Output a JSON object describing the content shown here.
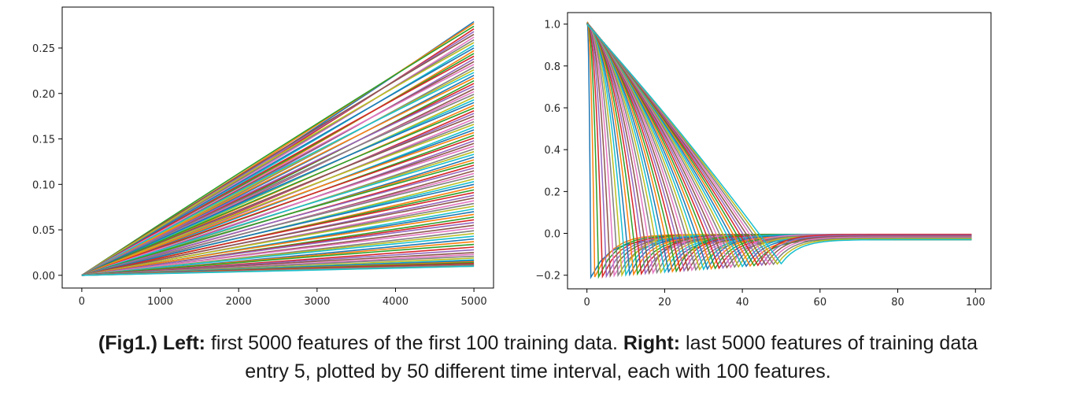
{
  "chart_data": [
    {
      "type": "line",
      "title": "",
      "xlabel": "",
      "ylabel": "",
      "xlim": [
        -250,
        5250
      ],
      "ylim": [
        -0.014,
        0.295
      ],
      "x_ticks": [
        0,
        1000,
        2000,
        3000,
        4000,
        5000
      ],
      "x_tick_labels": [
        "0",
        "1000",
        "2000",
        "3000",
        "4000",
        "5000"
      ],
      "y_ticks": [
        0.0,
        0.05,
        0.1,
        0.15,
        0.2,
        0.25
      ],
      "y_tick_labels": [
        "0.00",
        "0.05",
        "0.10",
        "0.15",
        "0.20",
        "0.25"
      ],
      "grid": false,
      "legend": "none",
      "series_count": 100,
      "x_range": [
        0,
        5000
      ],
      "y_start": 0.0,
      "y_end_values": [
        0.279,
        0.277,
        0.274,
        0.271,
        0.268,
        0.265,
        0.262,
        0.259,
        0.256,
        0.253,
        0.25,
        0.247,
        0.244,
        0.241,
        0.238,
        0.235,
        0.232,
        0.229,
        0.226,
        0.223,
        0.22,
        0.217,
        0.214,
        0.211,
        0.208,
        0.205,
        0.202,
        0.199,
        0.196,
        0.193,
        0.19,
        0.187,
        0.184,
        0.181,
        0.178,
        0.175,
        0.172,
        0.169,
        0.166,
        0.163,
        0.16,
        0.157,
        0.154,
        0.151,
        0.148,
        0.145,
        0.142,
        0.139,
        0.136,
        0.133,
        0.13,
        0.127,
        0.124,
        0.121,
        0.118,
        0.115,
        0.112,
        0.109,
        0.106,
        0.103,
        0.1,
        0.097,
        0.094,
        0.091,
        0.088,
        0.085,
        0.082,
        0.079,
        0.076,
        0.073,
        0.07,
        0.067,
        0.064,
        0.061,
        0.058,
        0.055,
        0.052,
        0.049,
        0.046,
        0.043,
        0.04,
        0.037,
        0.034,
        0.031,
        0.028,
        0.025,
        0.023,
        0.021,
        0.019,
        0.017,
        0.016,
        0.015,
        0.014,
        0.013,
        0.012,
        0.012,
        0.011,
        0.011,
        0.01,
        0.01
      ],
      "colors": [
        "#1f77b4",
        "#ff7f0e",
        "#2ca02c",
        "#d62728",
        "#9467bd",
        "#8c564b",
        "#e377c2",
        "#7f7f7f",
        "#bcbd22",
        "#17becf"
      ]
    },
    {
      "type": "line",
      "title": "",
      "xlabel": "",
      "ylabel": "",
      "xlim": [
        -5,
        104
      ],
      "ylim": [
        -0.265,
        1.055
      ],
      "x_ticks": [
        0,
        20,
        40,
        60,
        80,
        100
      ],
      "x_tick_labels": [
        "0",
        "20",
        "40",
        "60",
        "80",
        "100"
      ],
      "y_ticks": [
        -0.2,
        0.0,
        0.2,
        0.4,
        0.6,
        0.8,
        1.0
      ],
      "y_tick_labels": [
        "−0.2",
        "0.0",
        "0.2",
        "0.4",
        "0.6",
        "0.8",
        "1.0"
      ],
      "grid": false,
      "legend": "none",
      "series_count": 50,
      "x_range": [
        0,
        99
      ],
      "peak_y": 1.0,
      "min_y_first": -0.21,
      "min_y_last": -0.145,
      "tail_y": -0.03,
      "colors": [
        "#1f77b4",
        "#ff7f0e",
        "#2ca02c",
        "#d62728",
        "#9467bd",
        "#8c564b",
        "#e377c2",
        "#7f7f7f",
        "#bcbd22",
        "#17becf"
      ]
    }
  ],
  "caption": {
    "line1_bold1": "(Fig1.) Left:",
    "line1_text1": " first 5000 features of the first 100 training data. ",
    "line1_bold2": "Right:",
    "line1_text2": " last 5000 features of training data",
    "line2": "entry 5, plotted by 50 different time interval, each with 100 features."
  }
}
